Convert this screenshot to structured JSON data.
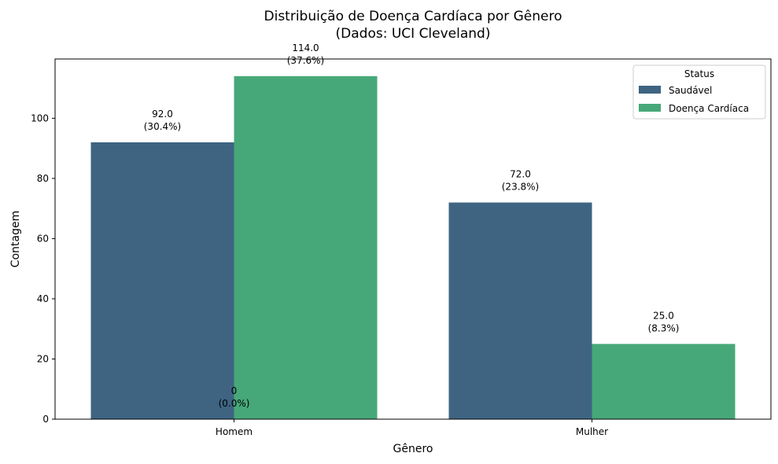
{
  "chart_data": {
    "type": "bar",
    "title_lines": [
      "Distribuição de Doença Cardíaca por Gênero",
      "(Dados: UCI Cleveland)"
    ],
    "xlabel": "Gênero",
    "ylabel": "Contagem",
    "categories": [
      "Homem",
      "Mulher"
    ],
    "series": [
      {
        "name": "Saudável",
        "color": "#3e6482",
        "values": [
          92,
          72
        ]
      },
      {
        "name": "Doença Cardíaca",
        "color": "#46a878",
        "values": [
          114,
          25
        ]
      }
    ],
    "data_labels": [
      {
        "series": 0,
        "category": 0,
        "value_text": "92.0",
        "pct_text": "(30.4%)"
      },
      {
        "series": 1,
        "category": 0,
        "value_text": "114.0",
        "pct_text": "(37.6%)"
      },
      {
        "series": 0,
        "category": 1,
        "value_text": "72.0",
        "pct_text": "(23.8%)"
      },
      {
        "series": 1,
        "category": 1,
        "value_text": "25.0",
        "pct_text": "(8.3%)"
      },
      {
        "series": "baseline",
        "category": 0,
        "value_text": "0",
        "pct_text": "(0.0%)"
      }
    ],
    "y_ticks": [
      "0",
      "20",
      "40",
      "60",
      "80",
      "100"
    ],
    "ylim": [
      0,
      119.7
    ],
    "legend": {
      "title": "Status",
      "position": "top-right"
    },
    "grid": false
  }
}
